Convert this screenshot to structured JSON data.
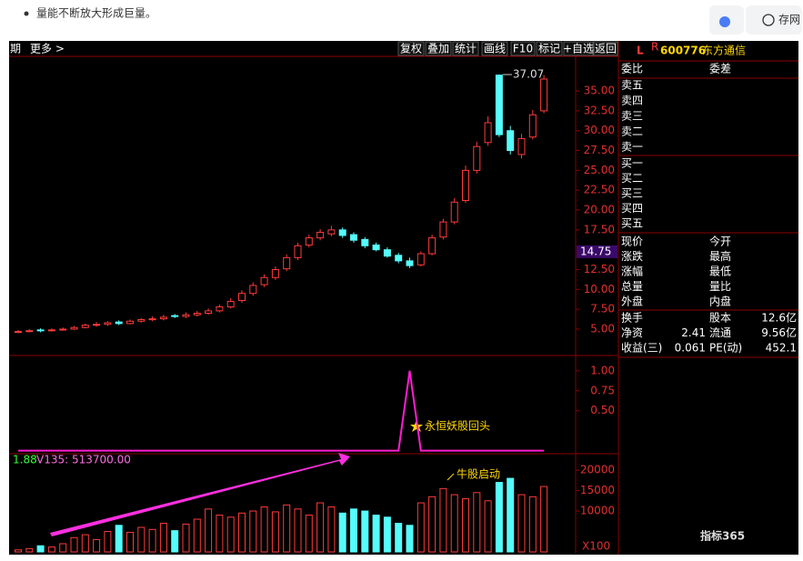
{
  "page": {
    "note_text": "量能不断放大形成巨量。",
    "save_button": "存网",
    "watermark": "指标365"
  },
  "toolbar": {
    "left": [
      "期",
      "更多 >"
    ],
    "items": [
      "复权",
      "叠加",
      "统计",
      "画线",
      "F10",
      "标记",
      "+自选",
      "返回"
    ]
  },
  "chart_data": [
    {
      "type": "candlestick",
      "open": [
        4.6,
        4.7,
        4.9,
        4.8,
        4.9,
        5.0,
        5.2,
        5.5,
        5.6,
        5.9,
        5.7,
        6.0,
        6.2,
        6.3,
        6.7,
        6.6,
        6.8,
        7.0,
        7.3,
        7.8,
        8.6,
        9.5,
        10.6,
        11.5,
        12.6,
        14.0,
        15.6,
        16.5,
        17.0,
        17.5,
        16.9,
        16.3,
        15.6,
        15.0,
        14.3,
        13.6,
        13.1,
        14.5,
        16.6,
        18.5,
        21.2,
        25.0,
        28.5,
        37.0,
        30.0,
        27.0,
        29.2,
        32.5
      ],
      "close": [
        4.7,
        4.8,
        4.8,
        4.9,
        5.0,
        5.2,
        5.5,
        5.6,
        5.8,
        5.7,
        6.0,
        6.2,
        6.3,
        6.5,
        6.6,
        6.8,
        7.0,
        7.3,
        7.8,
        8.5,
        9.5,
        10.5,
        11.5,
        12.5,
        14.0,
        15.5,
        16.5,
        17.2,
        17.5,
        16.8,
        16.2,
        15.5,
        15.0,
        14.2,
        13.6,
        13.0,
        14.5,
        16.5,
        18.5,
        21.0,
        25.0,
        28.0,
        31.0,
        29.5,
        27.5,
        29.0,
        32.0,
        36.5
      ],
      "high": [
        4.9,
        5.0,
        5.1,
        5.1,
        5.2,
        5.4,
        5.7,
        5.9,
        6.0,
        6.1,
        6.2,
        6.4,
        6.6,
        6.8,
        6.9,
        7.1,
        7.3,
        7.6,
        8.1,
        8.9,
        9.9,
        10.9,
        11.9,
        12.9,
        14.4,
        15.9,
        16.9,
        17.6,
        18.0,
        17.8,
        17.2,
        16.6,
        15.9,
        15.3,
        14.6,
        14.0,
        14.8,
        16.9,
        18.9,
        21.5,
        25.6,
        28.6,
        31.8,
        37.07,
        30.6,
        29.6,
        32.6,
        37.0
      ],
      "low": [
        4.5,
        4.6,
        4.6,
        4.7,
        4.8,
        4.9,
        5.1,
        5.3,
        5.4,
        5.5,
        5.6,
        5.8,
        6.0,
        6.1,
        6.4,
        6.4,
        6.6,
        6.8,
        7.1,
        7.6,
        8.3,
        9.2,
        10.3,
        11.2,
        12.3,
        13.7,
        15.3,
        16.2,
        16.7,
        16.5,
        15.9,
        15.2,
        14.8,
        14.0,
        13.3,
        12.7,
        12.9,
        14.3,
        16.3,
        18.2,
        20.9,
        24.6,
        28.1,
        29.2,
        27.0,
        26.5,
        28.9,
        32.2
      ],
      "up_color": "#ff3b3b",
      "down_color": "#54fcfc",
      "ylim": [
        1.79,
        39.36
      ],
      "yticks": [
        {
          "value": 35,
          "label": "35.00"
        },
        {
          "value": 32.5,
          "label": "32.50"
        },
        {
          "value": 30,
          "label": "30.00"
        },
        {
          "value": 27.5,
          "label": "27.50"
        },
        {
          "value": 25,
          "label": "25.00"
        },
        {
          "value": 22.5,
          "label": "22.50"
        },
        {
          "value": 20,
          "label": "20.00"
        },
        {
          "value": 17.5,
          "label": "17.50"
        },
        {
          "value": 12.5,
          "label": "12.50"
        },
        {
          "value": 10,
          "label": "10.00"
        },
        {
          "value": 7.5,
          "label": "7.50"
        },
        {
          "value": 5,
          "label": "5.00"
        }
      ],
      "price_tag": 14.75,
      "max_label_index": 43
    },
    {
      "type": "line",
      "values": [
        0,
        0,
        0,
        0,
        0,
        0,
        0,
        0,
        0,
        0,
        0,
        0,
        0,
        0,
        0,
        0,
        0,
        0,
        0,
        0,
        0,
        0,
        0,
        0,
        0,
        0,
        0,
        0,
        0,
        0,
        0,
        0,
        0,
        0,
        0,
        1,
        0,
        0,
        0,
        0,
        0,
        0,
        0,
        0,
        0,
        0,
        0,
        0
      ],
      "color": "#ff1dd0",
      "annotation": "永恒妖股回头",
      "ylim": [
        -0.05,
        1.18
      ],
      "yticks": [
        {
          "value": 1,
          "label": "1.00"
        },
        {
          "value": 0.75,
          "label": "0.75"
        },
        {
          "value": 0.5,
          "label": "0.50"
        }
      ]
    },
    {
      "type": "volume",
      "header_left": "1.88",
      "header": "V135: 513700.00",
      "values": [
        500,
        800,
        1500,
        1200,
        2000,
        3500,
        4200,
        3000,
        5000,
        6500,
        4800,
        6000,
        5500,
        7000,
        5200,
        6800,
        8000,
        10500,
        9000,
        8500,
        9500,
        10000,
        11000,
        9800,
        11500,
        10500,
        9000,
        12000,
        11000,
        9500,
        10500,
        10000,
        9000,
        8500,
        7000,
        6500,
        12000,
        13500,
        15500,
        14000,
        13000,
        14500,
        12500,
        17000,
        18000,
        14000,
        13500,
        16000
      ],
      "annotation": "牛股启动",
      "unit_tag": "X100",
      "ylim": [
        0,
        23800
      ],
      "yticks": [
        20000,
        15000,
        10000
      ]
    }
  ],
  "quote_panel": {
    "market": "L",
    "flag": "R",
    "code": "600776",
    "name": "东方通信",
    "head": [
      "委比",
      "委差"
    ],
    "sell": [
      "卖五",
      "卖四",
      "卖三",
      "卖二",
      "卖一"
    ],
    "buy": [
      "买一",
      "买二",
      "买三",
      "买四",
      "买五"
    ],
    "stats": [
      {
        "left": "现价",
        "right": "今开"
      },
      {
        "left": "涨跌",
        "right": "最高"
      },
      {
        "left": "涨幅",
        "right": "最低"
      },
      {
        "left": "总量",
        "right": "量比"
      },
      {
        "left": "外盘",
        "right": "内盘"
      }
    ],
    "fundamentals": [
      {
        "left": "换手",
        "right": "股本",
        "right_value": "12.6亿"
      },
      {
        "left": "净资",
        "left_value": "2.41",
        "right": "流通",
        "right_value": "9.56亿"
      },
      {
        "left": "收益(三)",
        "left_value": "0.061",
        "right": "PE(动)",
        "right_value": "452.1"
      }
    ]
  }
}
